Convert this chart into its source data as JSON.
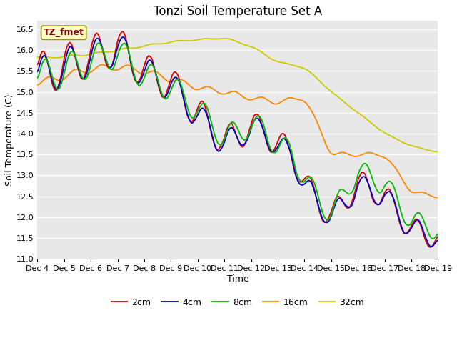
{
  "title": "Tonzi Soil Temperature Set A",
  "xlabel": "Time",
  "ylabel": "Soil Temperature (C)",
  "ylim": [
    11.0,
    16.7
  ],
  "yticks": [
    11.0,
    11.5,
    12.0,
    12.5,
    13.0,
    13.5,
    14.0,
    14.5,
    15.0,
    15.5,
    16.0,
    16.5
  ],
  "xtick_labels": [
    "Dec 4",
    "Dec 5",
    "Dec 6",
    "Dec 7",
    "Dec 8",
    "Dec 9",
    "Dec 10",
    "Dec 11",
    "Dec 12",
    "Dec 13",
    "Dec 14",
    "Dec 15",
    "Dec 16",
    "Dec 17",
    "Dec 18",
    "Dec 19"
  ],
  "legend_labels": [
    "2cm",
    "4cm",
    "8cm",
    "16cm",
    "32cm"
  ],
  "line_colors": [
    "#dd0000",
    "#0000cc",
    "#00bb00",
    "#ff8800",
    "#cccc00"
  ],
  "annotation_text": "TZ_fmet",
  "annotation_bg": "#ffffcc",
  "annotation_border": "#999900",
  "fig_bg": "#ffffff",
  "plot_bg": "#e8e8e8",
  "grid_color": "#ffffff",
  "title_fontsize": 12,
  "axis_label_fontsize": 9,
  "tick_fontsize": 8,
  "legend_fontsize": 9
}
